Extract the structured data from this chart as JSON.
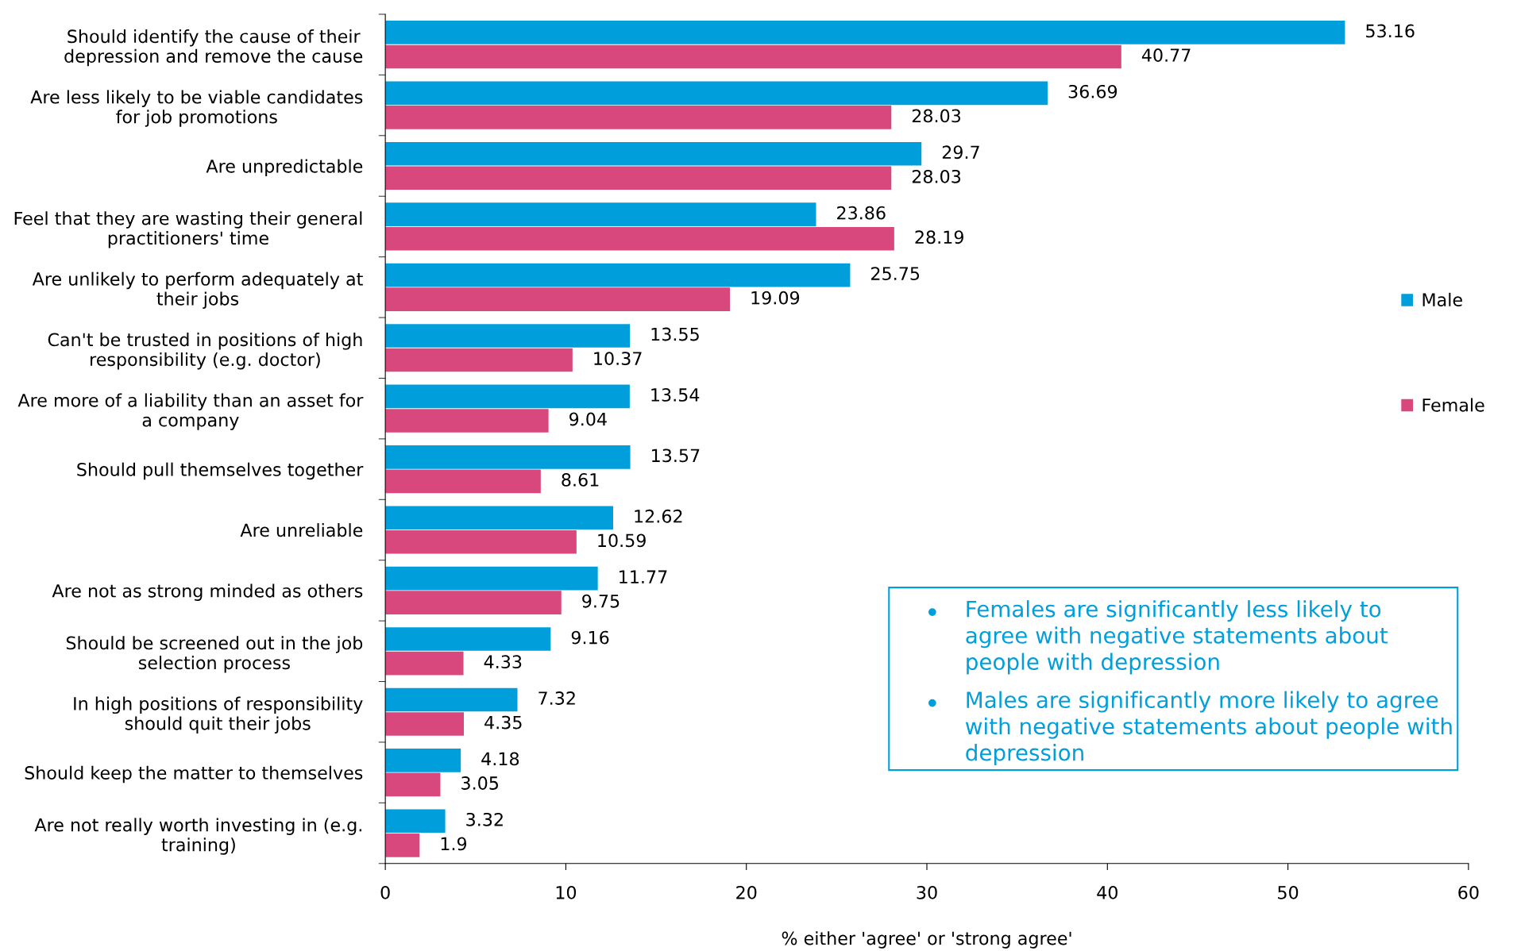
{
  "chart_data": {
    "type": "bar",
    "orientation": "horizontal",
    "xlabel": "% either 'agree' or 'strong agree'",
    "categories": [
      "Should identify the cause of their\ndepression and remove the cause",
      "Are less likely to be viable candidates\nfor job promotions",
      "Are unpredictable",
      "Feel that they are wasting their general\npractitioners' time",
      "Are unlikely to perform adequately at\ntheir jobs",
      "Can't be trusted in positions of high\nresponsibility (e.g. doctor)",
      "Are more of a liability than an asset for\na company",
      "Should pull themselves together",
      "Are unreliable",
      "Are not as strong minded as others",
      "Should be screened out in the job\nselection process",
      "In high positions of responsibility\nshould quit their jobs",
      "Should keep the matter to themselves",
      "Are not really worth investing in (e.g.\ntraining)"
    ],
    "series": [
      {
        "name": "Male",
        "color": "#009fdb",
        "values": [
          53.16,
          36.69,
          29.7,
          23.86,
          25.75,
          13.55,
          13.54,
          13.57,
          12.62,
          11.77,
          9.16,
          7.32,
          4.18,
          3.32
        ]
      },
      {
        "name": "Female",
        "color": "#d9487c",
        "values": [
          40.77,
          28.03,
          28.03,
          28.19,
          19.09,
          10.37,
          9.04,
          8.61,
          10.59,
          9.75,
          4.33,
          4.35,
          3.05,
          1.9
        ]
      }
    ],
    "xlim": [
      0,
      60
    ],
    "xticks": [
      0,
      10,
      20,
      30,
      40,
      50,
      60
    ],
    "data_labels": true,
    "legend": "right",
    "grid": false,
    "annotations": [
      "Females are significantly less likely to\nagree with negative statements about\npeople with depression",
      "Males are significantly more likely to agree\nwith negative statements about people with\ndepression"
    ]
  }
}
